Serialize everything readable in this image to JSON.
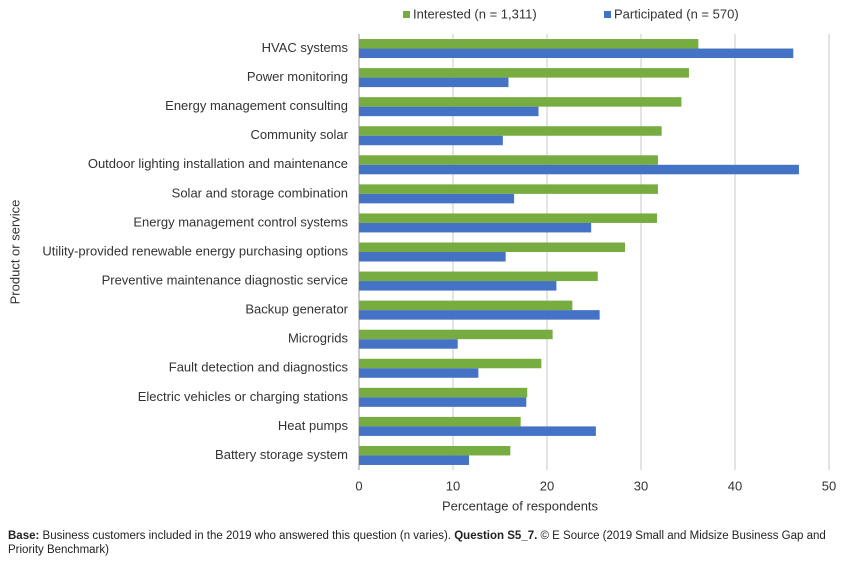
{
  "chart_data": {
    "type": "hbar",
    "x_label": "Percentage of respondents",
    "y_label": "Product or service",
    "categories": [
      "HVAC systems",
      "Power monitoring",
      "Energy management consulting",
      "Community solar",
      "Outdoor lighting installation and maintenance",
      "Solar and storage combination",
      "Energy management control systems",
      "Utility-provided renewable energy purchasing options",
      "Preventive maintenance diagnostic service",
      "Backup generator",
      "Microgrids",
      "Fault detection and diagnostics",
      "Electric vehicles or charging stations",
      "Heat pumps",
      "Battery storage system"
    ],
    "series": [
      {
        "name": "Interested (n = 1,311)",
        "color": "#77ac41",
        "values": [
          36.1,
          35.1,
          34.3,
          32.2,
          31.8,
          31.8,
          31.7,
          28.3,
          25.4,
          22.7,
          20.6,
          19.4,
          17.9,
          17.2,
          16.1
        ]
      },
      {
        "name": "Participated (n = 570)",
        "color": "#4472c4",
        "values": [
          46.2,
          15.9,
          19.1,
          15.3,
          46.8,
          16.5,
          24.7,
          15.6,
          21.0,
          25.6,
          10.5,
          12.7,
          17.8,
          25.2,
          11.7
        ]
      }
    ],
    "xlim": [
      0,
      50
    ],
    "xticks": [
      0,
      10,
      20,
      30,
      40,
      50
    ],
    "grid": true,
    "legend": "top"
  },
  "footnote": {
    "base_label": "Base:",
    "base_text": "Business customers included in the 2019 who answered this question (n varies).",
    "question_label": "Question S5_7.",
    "source_text": "© E Source (2019 Small and Midsize Business Gap and Priority Benchmark)"
  }
}
